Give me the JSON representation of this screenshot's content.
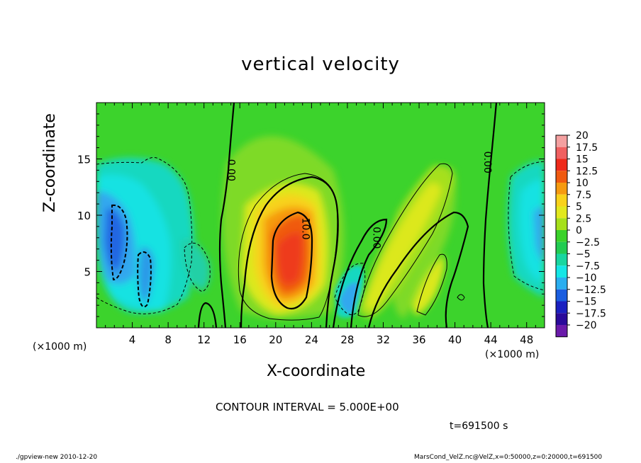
{
  "chart_data": {
    "type": "heatmap",
    "title": "vertical velocity",
    "xlabel": "X-coordinate",
    "ylabel": "Z-coordinate",
    "x_unit": "(×1000 m)",
    "xlim": [
      0,
      50
    ],
    "ylim": [
      0,
      20
    ],
    "x_ticks": [
      4,
      8,
      12,
      16,
      20,
      24,
      28,
      32,
      36,
      40,
      44,
      48
    ],
    "y_ticks": [
      5,
      10,
      15
    ],
    "colorbar": {
      "levels": [
        "20",
        "17.5",
        "15",
        "12.5",
        "10",
        "7.5",
        "5",
        "2.5",
        "0",
        "−2.5",
        "−5",
        "−7.5",
        "−10",
        "−12.5",
        "−15",
        "−17.5",
        "−20"
      ],
      "colors": [
        "#f4a0a0",
        "#f06060",
        "#ee2a1a",
        "#f05a10",
        "#f59a10",
        "#f8d21a",
        "#e2e81e",
        "#a6e01a",
        "#3ad22a",
        "#22cc52",
        "#18d6a0",
        "#14e6e6",
        "#2aaef0",
        "#1a5ee0",
        "#1a20c0",
        "#2a0a9a",
        "#6a1aaa"
      ]
    },
    "contour_labels": [
      {
        "text": "0.00",
        "x": 15,
        "y": 14
      },
      {
        "text": "10.0",
        "x": 23.3,
        "y": 8.8
      },
      {
        "text": "0.00",
        "x": 31.2,
        "y": 8.0
      },
      {
        "text": "0.00",
        "x": 43.6,
        "y": 14.7
      }
    ],
    "features": [
      {
        "kind": "updraft",
        "peak": 12.5,
        "x": 21.5,
        "z": 6.0
      },
      {
        "kind": "downdraft",
        "peak": -12.5,
        "x": 2.0,
        "z": 8.0
      },
      {
        "kind": "downdraft",
        "peak": -7.5,
        "x": 29.0,
        "z": 3.0
      },
      {
        "kind": "downdraft",
        "peak": -7.5,
        "x": 49.5,
        "z": 9.0
      }
    ],
    "contour_interval": "CONTOUR INTERVAL = 5.000E+00",
    "time": "t=691500 s"
  },
  "footer": {
    "left": "./gpview-new  2010-12-20",
    "right": "MarsCond_VelZ.nc@VelZ,x=0:50000,z=0:20000,t=691500"
  }
}
